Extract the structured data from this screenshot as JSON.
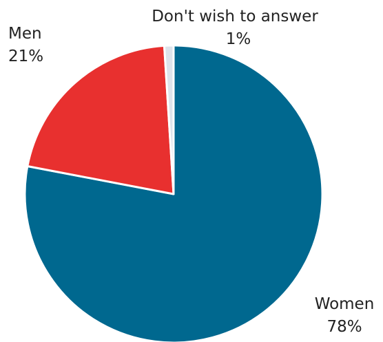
{
  "chart_data": {
    "type": "pie",
    "title": "",
    "slices": [
      {
        "label": "Women",
        "value": 78,
        "value_label": "78%",
        "color": "#00688f"
      },
      {
        "label": "Men",
        "value": 21,
        "value_label": "21%",
        "color": "#e8302f"
      },
      {
        "label": "Don't wish to answer",
        "value": 1,
        "value_label": "1%",
        "color": "#dde3eb"
      }
    ],
    "start_angle": "12 o'clock",
    "direction": "clockwise",
    "legend": "none (direct labels)"
  }
}
